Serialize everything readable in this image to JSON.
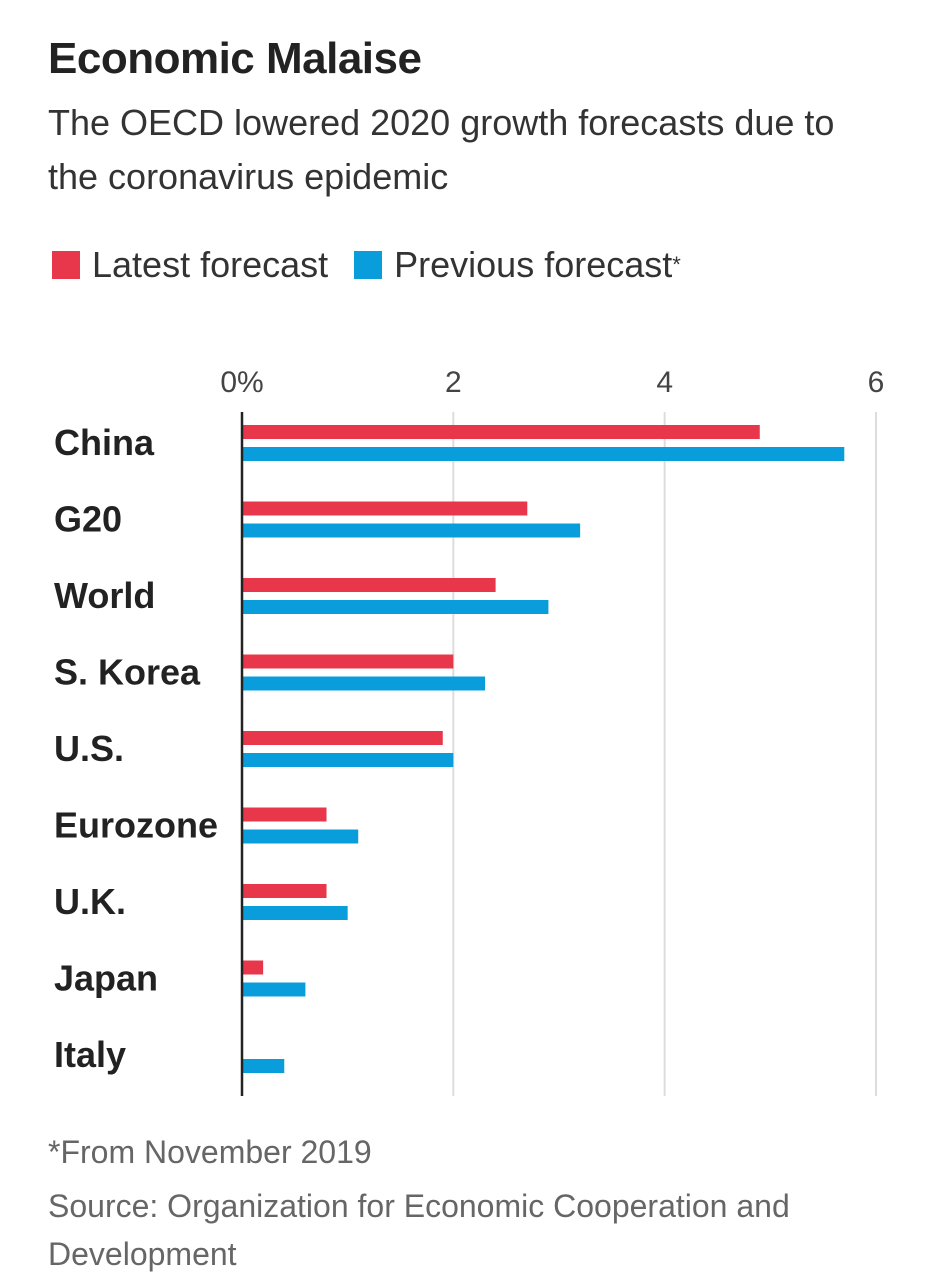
{
  "header": {
    "title": "Economic Malaise",
    "subtitle": "The OECD lowered 2020 growth forecasts due to the coronavirus epidemic"
  },
  "legend": {
    "latest_label": "Latest forecast",
    "previous_label": "Previous forecast",
    "previous_note": "*"
  },
  "footer": {
    "footnote": "*From November 2019",
    "source": "Source: Organization for Economic Cooperation and Development"
  },
  "colors": {
    "latest": "#e8374a",
    "previous": "#0a9ddc",
    "grid": "#dddddd",
    "axis": "#222222"
  },
  "chart_data": {
    "type": "bar",
    "orientation": "horizontal",
    "categories": [
      "China",
      "G20",
      "World",
      "S. Korea",
      "U.S.",
      "Eurozone",
      "U.K.",
      "Japan",
      "Italy"
    ],
    "series": [
      {
        "name": "Latest forecast",
        "values": [
          4.9,
          2.7,
          2.4,
          2.0,
          1.9,
          0.8,
          0.8,
          0.2,
          0.0
        ]
      },
      {
        "name": "Previous forecast",
        "values": [
          5.7,
          3.2,
          2.9,
          2.3,
          2.0,
          1.1,
          1.0,
          0.6,
          0.4
        ]
      }
    ],
    "xlim": [
      0,
      6
    ],
    "xticks": [
      0,
      2,
      4,
      6
    ],
    "xtick_labels": [
      "0%",
      "2",
      "4",
      "6"
    ],
    "grid": true,
    "legend_position": "top-left"
  }
}
